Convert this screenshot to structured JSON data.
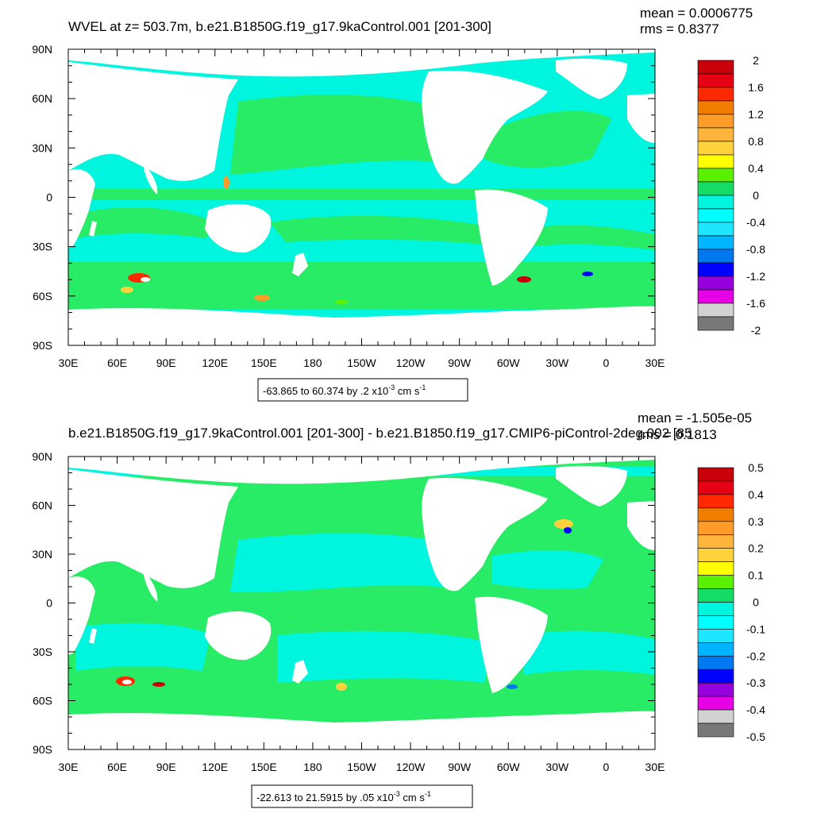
{
  "panels": [
    {
      "title": "WVEL at z= 503.7m, b.e21.B1850G.f19_g17.9kaControl.001 [201-300]",
      "mean": "mean = 0.0006775",
      "rms": "rms = 0.8377",
      "range_text": "-63.865 to 60.374 by .2 x10",
      "range_exp": "-3",
      "range_unit": " cm s",
      "range_unit_exp": "-1",
      "colorbar_labels": [
        "2",
        "1.6",
        "1.2",
        "0.8",
        "0.4",
        "0",
        "-0.4",
        "-0.8",
        "-1.2",
        "-1.6",
        "-2"
      ],
      "ocean_fill": "#00f5df",
      "band_fill": "#29ec66"
    },
    {
      "title": "b.e21.B1850G.f19_g17.9kaControl.001 [201-300] - b.e21.B1850.f19_g17.CMIP6-piControl-2deg.002 [85",
      "mean": "mean = -1.505e-05",
      "rms": "rms = 0.1813",
      "range_text": "-22.613 to 21.5915 by .05 x10",
      "range_exp": "-3",
      "range_unit": " cm s",
      "range_unit_exp": "-1",
      "colorbar_labels": [
        "0.5",
        "0.4",
        "0.3",
        "0.2",
        "0.1",
        "0",
        "-0.1",
        "-0.2",
        "-0.3",
        "-0.4",
        "-0.5"
      ],
      "ocean_fill": "#29ec66",
      "band_fill": "#00f5df"
    }
  ],
  "axes": {
    "x_ticks": [
      "30E",
      "60E",
      "90E",
      "120E",
      "150E",
      "180",
      "150W",
      "120W",
      "90W",
      "60W",
      "30W",
      "0",
      "30E"
    ],
    "y_ticks": [
      "90N",
      "60N",
      "30N",
      "0",
      "30S",
      "60S",
      "90S"
    ]
  },
  "colorbar_colors": [
    "#c8000a",
    "#e60014",
    "#ff2800",
    "#f07d00",
    "#ff9b28",
    "#ffb43c",
    "#ffd23c",
    "#ffff00",
    "#5af000",
    "#14dc64",
    "#00f5df",
    "#00ffff",
    "#1ee6ff",
    "#00b4ff",
    "#0078f0",
    "#0000ff",
    "#9600dc",
    "#e600e6",
    "#d2d2d2",
    "#787878"
  ],
  "chart_data": [
    {
      "type": "heatmap",
      "title": "WVEL at z= 503.7m, b.e21.B1850G.f19_g17.9kaControl.001 [201-300]",
      "x_ticks": [
        "30E",
        "60E",
        "90E",
        "120E",
        "150E",
        "180",
        "150W",
        "120W",
        "90W",
        "60W",
        "30W",
        "0",
        "30E"
      ],
      "y_ticks": [
        "90N",
        "60N",
        "30N",
        "0",
        "30S",
        "60S",
        "90S"
      ],
      "xlim": [
        30,
        390
      ],
      "ylim": [
        -90,
        90
      ],
      "color_levels": [
        -2,
        -1.6,
        -1.2,
        -0.8,
        -0.4,
        0,
        0.4,
        0.8,
        1.2,
        1.6,
        2
      ],
      "stats": {
        "mean": 0.0006775,
        "rms": 0.8377
      },
      "range": {
        "min": -63.865,
        "max": 60.374,
        "interval": 0.2,
        "units": "x10^-3 cm s^-1"
      }
    },
    {
      "type": "heatmap",
      "title": "b.e21.B1850G.f19_g17.9kaControl.001 [201-300] - b.e21.B1850.f19_g17.CMIP6-piControl-2deg.002 [85",
      "x_ticks": [
        "30E",
        "60E",
        "90E",
        "120E",
        "150E",
        "180",
        "150W",
        "120W",
        "90W",
        "60W",
        "30W",
        "0",
        "30E"
      ],
      "y_ticks": [
        "90N",
        "60N",
        "30N",
        "0",
        "30S",
        "60S",
        "90S"
      ],
      "xlim": [
        30,
        390
      ],
      "ylim": [
        -90,
        90
      ],
      "color_levels": [
        -0.5,
        -0.4,
        -0.3,
        -0.2,
        -0.1,
        0,
        0.1,
        0.2,
        0.3,
        0.4,
        0.5
      ],
      "stats": {
        "mean": -1.505e-05,
        "rms": 0.1813
      },
      "range": {
        "min": -22.613,
        "max": 21.5915,
        "interval": 0.05,
        "units": "x10^-3 cm s^-1"
      }
    }
  ]
}
